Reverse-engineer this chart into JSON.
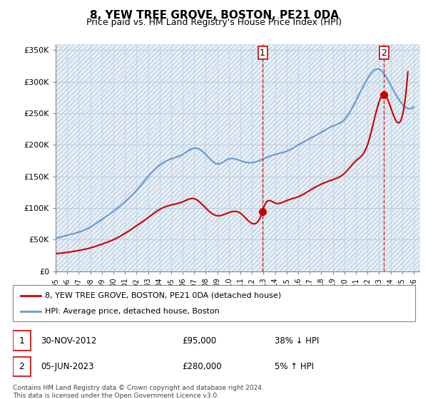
{
  "title": "8, YEW TREE GROVE, BOSTON, PE21 0DA",
  "subtitle": "Price paid vs. HM Land Registry's House Price Index (HPI)",
  "ylabel_vals": [
    "£0",
    "£50K",
    "£100K",
    "£150K",
    "£200K",
    "£250K",
    "£300K",
    "£350K"
  ],
  "yticks": [
    0,
    50000,
    100000,
    150000,
    200000,
    250000,
    300000,
    350000
  ],
  "ylim": [
    0,
    360000
  ],
  "xlim_start": 1995.0,
  "xlim_end": 2026.5,
  "legend_line1": "8, YEW TREE GROVE, BOSTON, PE21 0DA (detached house)",
  "legend_line2": "HPI: Average price, detached house, Boston",
  "note1": "1   30-NOV-2012        £95,000       38% ↓ HPI",
  "note2": "2   05-JUN-2023        £280,000       5% ↑ HPI",
  "footer": "Contains HM Land Registry data © Crown copyright and database right 2024.\nThis data is licensed under the Open Government Licence v3.0.",
  "sale1_x": 2012.917,
  "sale1_y": 95000,
  "sale2_x": 2023.42,
  "sale2_y": 280000,
  "hpi_color": "#6699cc",
  "price_color": "#cc0000",
  "background_color": "#ddeeff",
  "plot_bg_color": "#ffffff",
  "grid_color": "#bbccdd"
}
